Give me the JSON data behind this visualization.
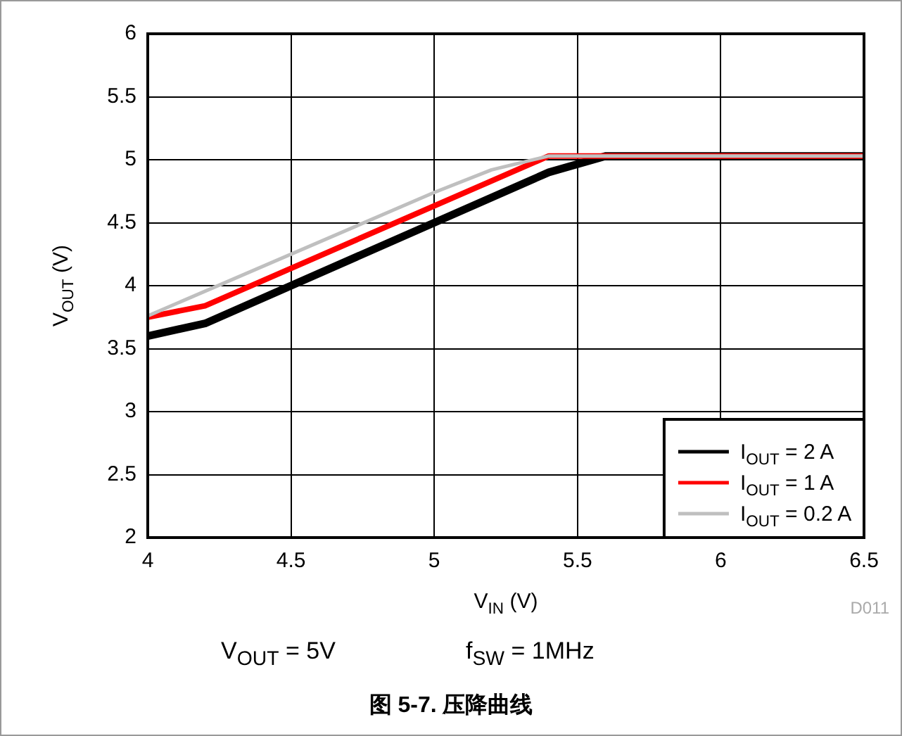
{
  "chart_data": {
    "type": "line",
    "title": "图 5-7. 压降曲线",
    "xlabel": "V$_{IN}$ (V)",
    "ylabel": "V$_{OUT}$ (V)",
    "annotations": [
      "V$_{OUT}$ = 5V",
      "f$_{SW}$ = 1MHz",
      "D011"
    ],
    "xlim": [
      4,
      6.5
    ],
    "xticks": [
      4,
      4.5,
      5,
      5.5,
      6,
      6.5
    ],
    "ylim": [
      2,
      6
    ],
    "yticks": [
      2,
      2.5,
      3,
      3.5,
      4,
      4.5,
      5,
      5.5,
      6
    ],
    "grid": true,
    "legend": "bottom right",
    "marker": "none",
    "line_style": "solid",
    "series": [
      {
        "name": "I$_{OUT}$ = 2 A",
        "color": "#000000",
        "x": [
          4,
          4.2,
          5,
          5.4,
          5.6,
          6.5
        ],
        "values": [
          3.6,
          3.7,
          4.5,
          4.9,
          5.03,
          5.03
        ]
      },
      {
        "name": "I$_{OUT}$ = 1 A",
        "color": "#ff0000",
        "x": [
          4,
          4.2,
          5.4,
          6.5
        ],
        "values": [
          3.75,
          3.84,
          5.03,
          5.03
        ]
      },
      {
        "name": "I$_{OUT}$ = 0.2 A",
        "color": "#bfbfbf",
        "x": [
          4,
          5,
          5.2,
          5.4,
          6.5
        ],
        "values": [
          3.76,
          4.74,
          4.92,
          5.03,
          5.03
        ]
      }
    ]
  }
}
